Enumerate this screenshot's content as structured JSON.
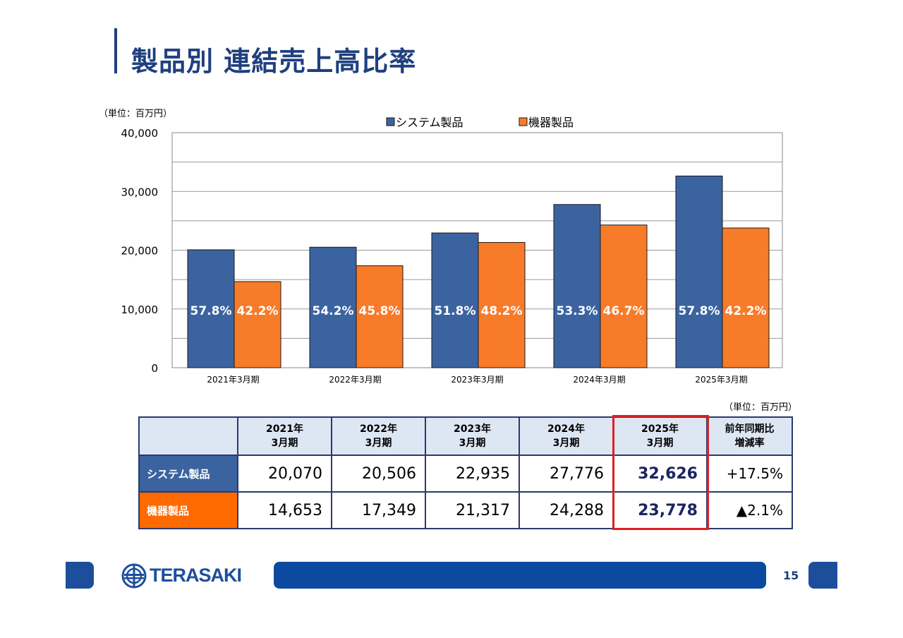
{
  "title": "製品別 連結売上高比率",
  "unit_label": "（単位：百万円）",
  "chart_data": {
    "type": "bar",
    "categories": [
      "2021年3月期",
      "2022年3月期",
      "2023年3月期",
      "2024年3月期",
      "2025年3月期"
    ],
    "series": [
      {
        "name": "システム製品",
        "values": [
          20070,
          20506,
          22935,
          27776,
          32626
        ],
        "labels": [
          "57.8%",
          "54.2%",
          "51.8%",
          "53.3%",
          "57.8%"
        ],
        "color": "#3b63a0"
      },
      {
        "name": "機器製品",
        "values": [
          14653,
          17349,
          21317,
          24288,
          23778
        ],
        "labels": [
          "42.2%",
          "45.8%",
          "48.2%",
          "46.7%",
          "42.2%"
        ],
        "color": "#f87b2a"
      }
    ],
    "ylim": [
      0,
      40000
    ],
    "yticks": [
      "0",
      "10,000",
      "20,000",
      "30,000",
      "40,000"
    ],
    "legend": "top-center",
    "grid": true
  },
  "table": {
    "headers": [
      [
        "",
        ""
      ],
      [
        "2021年",
        "3月期"
      ],
      [
        "2022年",
        "3月期"
      ],
      [
        "2023年",
        "3月期"
      ],
      [
        "2024年",
        "3月期"
      ],
      [
        "2025年",
        "3月期"
      ],
      [
        "前年同期比",
        "増減率"
      ]
    ],
    "rows": [
      {
        "label": "システム製品",
        "color": "#3b63a0",
        "cells": [
          "20,070",
          "20,506",
          "22,935",
          "27,776",
          "32,626"
        ],
        "change": "+17.5%"
      },
      {
        "label": "機器製品",
        "color": "#ff6a00",
        "cells": [
          "14,653",
          "17,349",
          "21,317",
          "24,288",
          "23,778"
        ],
        "change": "▲2.1%"
      }
    ]
  },
  "footer": {
    "logo_text": "TERASAKI",
    "page_number": "15"
  }
}
